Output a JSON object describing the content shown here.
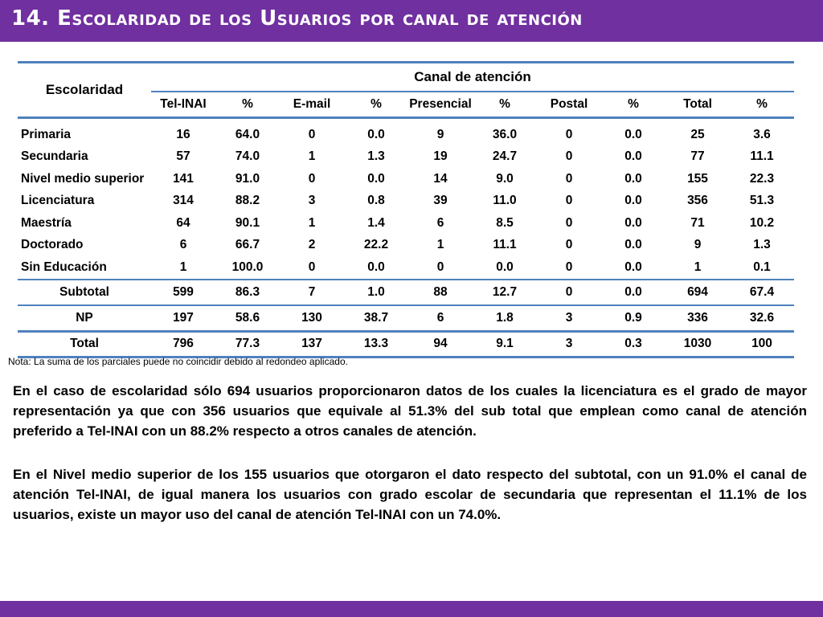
{
  "title": "14. Escolaridad de los Usuarios por canal de atención",
  "table": {
    "row_header": "Escolaridad",
    "group_header": "Canal de atención",
    "columns": [
      "Tel-INAI",
      "%",
      "E-mail",
      "%",
      "Presencial",
      "%",
      "Postal",
      "%",
      "Total",
      "%"
    ],
    "rows": [
      {
        "label": "Primaria",
        "values": [
          "16",
          "64.0",
          "0",
          "0.0",
          "9",
          "36.0",
          "0",
          "0.0",
          "25",
          "3.6"
        ]
      },
      {
        "label": "Secundaria",
        "values": [
          "57",
          "74.0",
          "1",
          "1.3",
          "19",
          "24.7",
          "0",
          "0.0",
          "77",
          "11.1"
        ]
      },
      {
        "label": "Nivel medio superior",
        "values": [
          "141",
          "91.0",
          "0",
          "0.0",
          "14",
          "9.0",
          "0",
          "0.0",
          "155",
          "22.3"
        ]
      },
      {
        "label": "Licenciatura",
        "values": [
          "314",
          "88.2",
          "3",
          "0.8",
          "39",
          "11.0",
          "0",
          "0.0",
          "356",
          "51.3"
        ]
      },
      {
        "label": "Maestría",
        "values": [
          "64",
          "90.1",
          "1",
          "1.4",
          "6",
          "8.5",
          "0",
          "0.0",
          "71",
          "10.2"
        ]
      },
      {
        "label": "Doctorado",
        "values": [
          "6",
          "66.7",
          "2",
          "22.2",
          "1",
          "11.1",
          "0",
          "0.0",
          "9",
          "1.3"
        ]
      },
      {
        "label": "Sin Educación",
        "values": [
          "1",
          "100.0",
          "0",
          "0.0",
          "0",
          "0.0",
          "0",
          "0.0",
          "1",
          "0.1"
        ]
      }
    ],
    "subtotal": {
      "label": "Subtotal",
      "values": [
        "599",
        "86.3",
        "7",
        "1.0",
        "88",
        "12.7",
        "0",
        "0.0",
        "694",
        "67.4"
      ]
    },
    "np": {
      "label": "NP",
      "values": [
        "197",
        "58.6",
        "130",
        "38.7",
        "6",
        "1.8",
        "3",
        "0.9",
        "336",
        "32.6"
      ]
    },
    "total": {
      "label": "Total",
      "values": [
        "796",
        "77.3",
        "137",
        "13.3",
        "94",
        "9.1",
        "3",
        "0.3",
        "1030",
        "100"
      ]
    }
  },
  "note": "Nota: La suma de los parciales puede no coincidir debido al redondeo aplicado.",
  "paragraphs": [
    "En el caso de escolaridad sólo 694 usuarios proporcionaron datos de los cuales la licenciatura es el grado de mayor representación ya que con 356 usuarios que equivale al 51.3% del sub total que emplean como canal de atención preferido a Tel-INAI con un 88.2% respecto a otros canales de atención.",
    "En el Nivel medio superior de los 155 usuarios que otorgaron el dato respecto del subtotal, con un 91.0% el canal de atención Tel-INAI, de igual manera los usuarios con grado escolar de secundaria que representan el 11.1% de los usuarios, existe un mayor uso del canal de atención Tel-INAI con un 74.0%."
  ],
  "colors": {
    "accent": "#7030a0",
    "table_lines": "#4f81bd"
  }
}
